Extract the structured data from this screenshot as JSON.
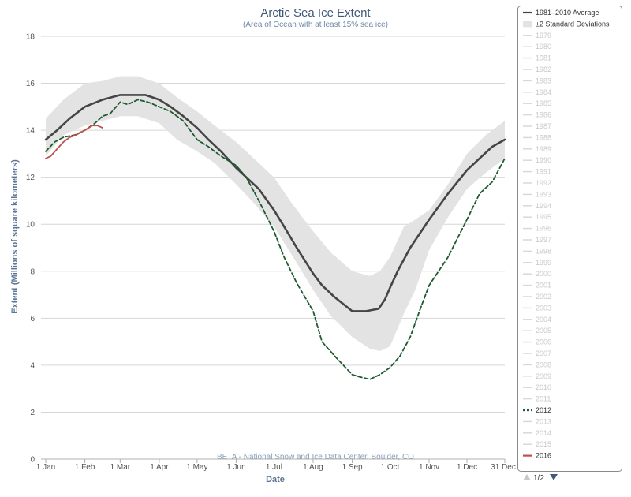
{
  "chart_data": {
    "type": "line",
    "title": "Arctic Sea Ice Extent",
    "subtitle": "(Area of Ocean with at least 15% sea ice)",
    "xlabel": "Date",
    "ylabel": "Extent (Millions of square kilometers)",
    "credit": "BETA - National Snow and Ice Data Center, Boulder, CO",
    "xlim": [
      1,
      365
    ],
    "ylim": [
      0,
      18
    ],
    "y_ticks": [
      0,
      2,
      4,
      6,
      8,
      10,
      12,
      14,
      16,
      18
    ],
    "x_ticks": [
      {
        "day": 1,
        "label": "1 Jan"
      },
      {
        "day": 32,
        "label": "1 Feb"
      },
      {
        "day": 60,
        "label": "1 Mar"
      },
      {
        "day": 91,
        "label": "1 Apr"
      },
      {
        "day": 121,
        "label": "1 May"
      },
      {
        "day": 152,
        "label": "1 Jun"
      },
      {
        "day": 182,
        "label": "1 Jul"
      },
      {
        "day": 213,
        "label": "1 Aug"
      },
      {
        "day": 244,
        "label": "1 Sep"
      },
      {
        "day": 274,
        "label": "1 Oct"
      },
      {
        "day": 305,
        "label": "1 Nov"
      },
      {
        "day": 335,
        "label": "1 Dec"
      },
      {
        "day": 365,
        "label": "31 Dec"
      }
    ],
    "grid": true,
    "legend_position": "right",
    "series": [
      {
        "name": "±2 Standard Deviations",
        "kind": "band",
        "color": "#e3e3e3",
        "x": [
          1,
          15,
          32,
          46,
          60,
          74,
          91,
          105,
          121,
          135,
          152,
          166,
          182,
          196,
          213,
          227,
          244,
          258,
          266,
          274,
          285,
          294,
          305,
          320,
          335,
          350,
          365
        ],
        "upper": [
          14.5,
          15.3,
          16.0,
          16.1,
          16.3,
          16.3,
          16.0,
          15.4,
          14.8,
          14.2,
          13.5,
          12.8,
          12.0,
          10.9,
          9.7,
          8.8,
          8.0,
          7.8,
          8.0,
          8.6,
          9.9,
          10.2,
          10.6,
          11.7,
          13.0,
          13.8,
          14.4
        ],
        "lower": [
          12.9,
          13.8,
          14.2,
          14.4,
          14.6,
          14.6,
          14.3,
          13.6,
          13.1,
          12.6,
          11.7,
          10.9,
          9.9,
          8.7,
          7.2,
          6.1,
          5.2,
          4.7,
          4.6,
          4.8,
          6.2,
          7.2,
          8.9,
          10.3,
          11.5,
          12.2,
          12.8
        ]
      },
      {
        "name": "1981–2010 Average",
        "kind": "line",
        "color": "#454545",
        "x": [
          1,
          10,
          20,
          32,
          46,
          60,
          70,
          80,
          91,
          100,
          110,
          121,
          130,
          140,
          152,
          160,
          170,
          182,
          190,
          200,
          213,
          220,
          230,
          244,
          255,
          265,
          270,
          274,
          280,
          290,
          305,
          320,
          335,
          345,
          355,
          365
        ],
        "values": [
          13.6,
          14.0,
          14.5,
          15.0,
          15.3,
          15.5,
          15.5,
          15.5,
          15.3,
          15.0,
          14.6,
          14.1,
          13.6,
          13.1,
          12.4,
          12.0,
          11.5,
          10.6,
          9.9,
          9.0,
          7.9,
          7.4,
          6.9,
          6.3,
          6.3,
          6.4,
          6.8,
          7.3,
          8.0,
          9.0,
          10.2,
          11.3,
          12.3,
          12.8,
          13.3,
          13.6
        ]
      },
      {
        "name": "2012",
        "kind": "dashed",
        "color": "#1e5a2f",
        "x": [
          1,
          8,
          15,
          24,
          32,
          40,
          46,
          52,
          60,
          66,
          74,
          82,
          91,
          100,
          110,
          121,
          130,
          140,
          152,
          160,
          170,
          182,
          190,
          200,
          213,
          220,
          230,
          244,
          250,
          258,
          266,
          274,
          282,
          290,
          298,
          305,
          320,
          335,
          345,
          355,
          365
        ],
        "values": [
          13.1,
          13.5,
          13.7,
          13.8,
          14.0,
          14.3,
          14.6,
          14.7,
          15.2,
          15.1,
          15.3,
          15.2,
          15.0,
          14.8,
          14.4,
          13.6,
          13.3,
          12.9,
          12.5,
          12.0,
          11.0,
          9.7,
          8.6,
          7.5,
          6.3,
          5.0,
          4.4,
          3.6,
          3.5,
          3.4,
          3.6,
          3.9,
          4.4,
          5.2,
          6.4,
          7.4,
          8.6,
          10.2,
          11.3,
          11.8,
          12.8
        ]
      },
      {
        "name": "2016",
        "kind": "line",
        "color": "#c0504d",
        "x": [
          1,
          5,
          10,
          15,
          20,
          25,
          32,
          38,
          42,
          46
        ],
        "values": [
          12.8,
          12.9,
          13.2,
          13.5,
          13.7,
          13.8,
          14.0,
          14.2,
          14.2,
          14.1
        ]
      }
    ]
  },
  "legend": {
    "items": [
      {
        "label": "1981–2010 Average",
        "swatch": "solid",
        "color": "#454545",
        "active": true
      },
      {
        "label": "±2 Standard Deviations",
        "swatch": "box",
        "color": "#e3e3e3",
        "active": true
      },
      {
        "label": "1979",
        "swatch": "solid",
        "color": "#d8d8d8",
        "active": false
      },
      {
        "label": "1980",
        "swatch": "solid",
        "color": "#d8d8d8",
        "active": false
      },
      {
        "label": "1981",
        "swatch": "solid",
        "color": "#d8d8d8",
        "active": false
      },
      {
        "label": "1982",
        "swatch": "solid",
        "color": "#d8d8d8",
        "active": false
      },
      {
        "label": "1983",
        "swatch": "solid",
        "color": "#d8d8d8",
        "active": false
      },
      {
        "label": "1984",
        "swatch": "solid",
        "color": "#d8d8d8",
        "active": false
      },
      {
        "label": "1985",
        "swatch": "solid",
        "color": "#d8d8d8",
        "active": false
      },
      {
        "label": "1986",
        "swatch": "solid",
        "color": "#d8d8d8",
        "active": false
      },
      {
        "label": "1987",
        "swatch": "solid",
        "color": "#d8d8d8",
        "active": false
      },
      {
        "label": "1988",
        "swatch": "solid",
        "color": "#d8d8d8",
        "active": false
      },
      {
        "label": "1989",
        "swatch": "solid",
        "color": "#d8d8d8",
        "active": false
      },
      {
        "label": "1990",
        "swatch": "solid",
        "color": "#d8d8d8",
        "active": false
      },
      {
        "label": "1991",
        "swatch": "solid",
        "color": "#d8d8d8",
        "active": false
      },
      {
        "label": "1992",
        "swatch": "solid",
        "color": "#d8d8d8",
        "active": false
      },
      {
        "label": "1993",
        "swatch": "solid",
        "color": "#d8d8d8",
        "active": false
      },
      {
        "label": "1994",
        "swatch": "solid",
        "color": "#d8d8d8",
        "active": false
      },
      {
        "label": "1995",
        "swatch": "solid",
        "color": "#d8d8d8",
        "active": false
      },
      {
        "label": "1996",
        "swatch": "solid",
        "color": "#d8d8d8",
        "active": false
      },
      {
        "label": "1997",
        "swatch": "solid",
        "color": "#d8d8d8",
        "active": false
      },
      {
        "label": "1998",
        "swatch": "solid",
        "color": "#d8d8d8",
        "active": false
      },
      {
        "label": "1999",
        "swatch": "solid",
        "color": "#d8d8d8",
        "active": false
      },
      {
        "label": "2000",
        "swatch": "solid",
        "color": "#d8d8d8",
        "active": false
      },
      {
        "label": "2001",
        "swatch": "solid",
        "color": "#d8d8d8",
        "active": false
      },
      {
        "label": "2002",
        "swatch": "solid",
        "color": "#d8d8d8",
        "active": false
      },
      {
        "label": "2003",
        "swatch": "solid",
        "color": "#d8d8d8",
        "active": false
      },
      {
        "label": "2004",
        "swatch": "solid",
        "color": "#d8d8d8",
        "active": false
      },
      {
        "label": "2005",
        "swatch": "solid",
        "color": "#d8d8d8",
        "active": false
      },
      {
        "label": "2006",
        "swatch": "solid",
        "color": "#d8d8d8",
        "active": false
      },
      {
        "label": "2007",
        "swatch": "solid",
        "color": "#d8d8d8",
        "active": false
      },
      {
        "label": "2008",
        "swatch": "solid",
        "color": "#d8d8d8",
        "active": false
      },
      {
        "label": "2009",
        "swatch": "solid",
        "color": "#d8d8d8",
        "active": false
      },
      {
        "label": "2010",
        "swatch": "solid",
        "color": "#d8d8d8",
        "active": false
      },
      {
        "label": "2011",
        "swatch": "solid",
        "color": "#d8d8d8",
        "active": false
      },
      {
        "label": "2012",
        "swatch": "dashed",
        "color": "#1e5a2f",
        "active": true
      },
      {
        "label": "2013",
        "swatch": "solid",
        "color": "#d8d8d8",
        "active": false
      },
      {
        "label": "2014",
        "swatch": "solid",
        "color": "#d8d8d8",
        "active": false
      },
      {
        "label": "2015",
        "swatch": "solid",
        "color": "#d8d8d8",
        "active": false
      },
      {
        "label": "2016",
        "swatch": "solid",
        "color": "#c0504d",
        "active": true
      }
    ],
    "page": "1/2"
  }
}
